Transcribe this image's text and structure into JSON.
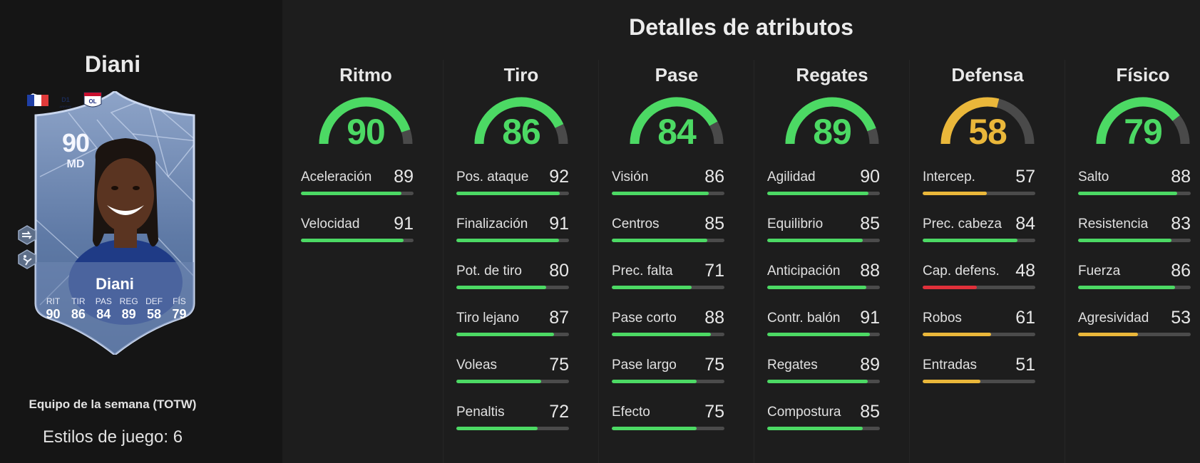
{
  "player": {
    "name": "Diani",
    "team_label": "Equipo de la semana (TOTW)",
    "playstyles_label": "Estilos de juego: 6"
  },
  "card": {
    "rating": "90",
    "position": "MD",
    "name": "Diani",
    "stats": [
      {
        "label": "RIT",
        "value": "90"
      },
      {
        "label": "TIR",
        "value": "86"
      },
      {
        "label": "PAS",
        "value": "84"
      },
      {
        "label": "REG",
        "value": "89"
      },
      {
        "label": "DEF",
        "value": "58"
      },
      {
        "label": "FÍS",
        "value": "79"
      }
    ],
    "nation": "France",
    "league_badge": "D1",
    "club": "OL",
    "icons": [
      "boot-icon",
      "playstyle-dash-icon",
      "playstyle-acrobatic-icon"
    ]
  },
  "main": {
    "title": "Detalles de atributos"
  },
  "colors": {
    "high": "#4cd964",
    "mid": "#eab73a",
    "low": "#e0303a",
    "track": "#4b4b4b"
  },
  "categories": [
    {
      "name": "Ritmo",
      "value": 90,
      "value_text": "90",
      "attrs": [
        {
          "label": "Aceleración",
          "value": 89,
          "value_text": "89"
        },
        {
          "label": "Velocidad",
          "value": 91,
          "value_text": "91"
        }
      ]
    },
    {
      "name": "Tiro",
      "value": 86,
      "value_text": "86",
      "attrs": [
        {
          "label": "Pos. ataque",
          "value": 92,
          "value_text": "92"
        },
        {
          "label": "Finalización",
          "value": 91,
          "value_text": "91"
        },
        {
          "label": "Pot. de tiro",
          "value": 80,
          "value_text": "80"
        },
        {
          "label": "Tiro lejano",
          "value": 87,
          "value_text": "87"
        },
        {
          "label": "Voleas",
          "value": 75,
          "value_text": "75"
        },
        {
          "label": "Penaltis",
          "value": 72,
          "value_text": "72"
        }
      ]
    },
    {
      "name": "Pase",
      "value": 84,
      "value_text": "84",
      "attrs": [
        {
          "label": "Visión",
          "value": 86,
          "value_text": "86"
        },
        {
          "label": "Centros",
          "value": 85,
          "value_text": "85"
        },
        {
          "label": "Prec. falta",
          "value": 71,
          "value_text": "71"
        },
        {
          "label": "Pase corto",
          "value": 88,
          "value_text": "88"
        },
        {
          "label": "Pase largo",
          "value": 75,
          "value_text": "75"
        },
        {
          "label": "Efecto",
          "value": 75,
          "value_text": "75"
        }
      ]
    },
    {
      "name": "Regates",
      "value": 89,
      "value_text": "89",
      "attrs": [
        {
          "label": "Agilidad",
          "value": 90,
          "value_text": "90"
        },
        {
          "label": "Equilibrio",
          "value": 85,
          "value_text": "85"
        },
        {
          "label": "Anticipación",
          "value": 88,
          "value_text": "88"
        },
        {
          "label": "Contr. balón",
          "value": 91,
          "value_text": "91"
        },
        {
          "label": "Regates",
          "value": 89,
          "value_text": "89"
        },
        {
          "label": "Compostura",
          "value": 85,
          "value_text": "85"
        }
      ]
    },
    {
      "name": "Defensa",
      "value": 58,
      "value_text": "58",
      "attrs": [
        {
          "label": "Intercep.",
          "value": 57,
          "value_text": "57"
        },
        {
          "label": "Prec. cabeza",
          "value": 84,
          "value_text": "84"
        },
        {
          "label": "Cap. defens.",
          "value": 48,
          "value_text": "48"
        },
        {
          "label": "Robos",
          "value": 61,
          "value_text": "61"
        },
        {
          "label": "Entradas",
          "value": 51,
          "value_text": "51"
        }
      ]
    },
    {
      "name": "Físico",
      "value": 79,
      "value_text": "79",
      "attrs": [
        {
          "label": "Salto",
          "value": 88,
          "value_text": "88"
        },
        {
          "label": "Resistencia",
          "value": 83,
          "value_text": "83"
        },
        {
          "label": "Fuerza",
          "value": 86,
          "value_text": "86"
        },
        {
          "label": "Agresividad",
          "value": 53,
          "value_text": "53"
        }
      ]
    }
  ]
}
